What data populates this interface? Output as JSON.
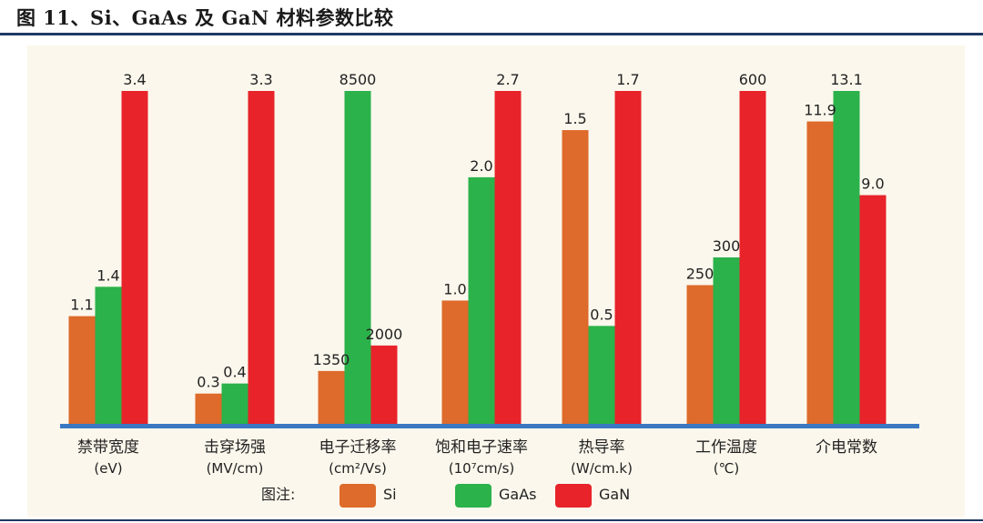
{
  "figure": {
    "title": "图 11、Si、GaAs 及 GaN 材料参数比较"
  },
  "colors": {
    "si": "#de6a2b",
    "gaas": "#2bb24a",
    "gan": "#e8232a",
    "baseline": "#3a78c2",
    "panel": "#fbf7ec",
    "rule": "#1f3864"
  },
  "chart_data": {
    "type": "bar",
    "title": "",
    "xlabel": "",
    "ylabel": "",
    "legend_title": "图注:",
    "legend_position": "bottom",
    "grid": false,
    "categories": [
      {
        "label": "禁带宽度",
        "unit": "(eV)"
      },
      {
        "label": "击穿场强",
        "unit": "(MV/cm)"
      },
      {
        "label": "电子迁移率",
        "unit": "(cm²/Vs)"
      },
      {
        "label": "饱和电子速率",
        "unit": "(10⁷cm/s)"
      },
      {
        "label": "热导率",
        "unit": "(W/cm.k)"
      },
      {
        "label": "工作温度",
        "unit": "(℃)"
      },
      {
        "label": "介电常数",
        "unit": ""
      }
    ],
    "series": [
      {
        "name": "Si",
        "values": [
          1.1,
          0.3,
          1350,
          1.0,
          1.5,
          250,
          11.9
        ],
        "labels": [
          "1.1",
          "0.3",
          "1350",
          "1.0",
          "1.5",
          "250",
          "11.9"
        ]
      },
      {
        "name": "GaAs",
        "values": [
          1.4,
          0.4,
          8500,
          2.0,
          0.5,
          300,
          13.1
        ],
        "labels": [
          "1.4",
          "0.4",
          "8500",
          "2.0",
          "0.5",
          "300",
          "13.1"
        ]
      },
      {
        "name": "GaN",
        "values": [
          3.4,
          3.3,
          2000,
          2.7,
          1.7,
          600,
          9.0
        ],
        "labels": [
          "3.4",
          "3.3",
          "2000",
          "2.7",
          "1.7",
          "600",
          "9.0"
        ]
      }
    ],
    "group_max": [
      3.4,
      3.3,
      8500,
      2.7,
      1.7,
      600,
      13.1
    ],
    "note": "each parameter group is drawn on its own independent scale"
  }
}
